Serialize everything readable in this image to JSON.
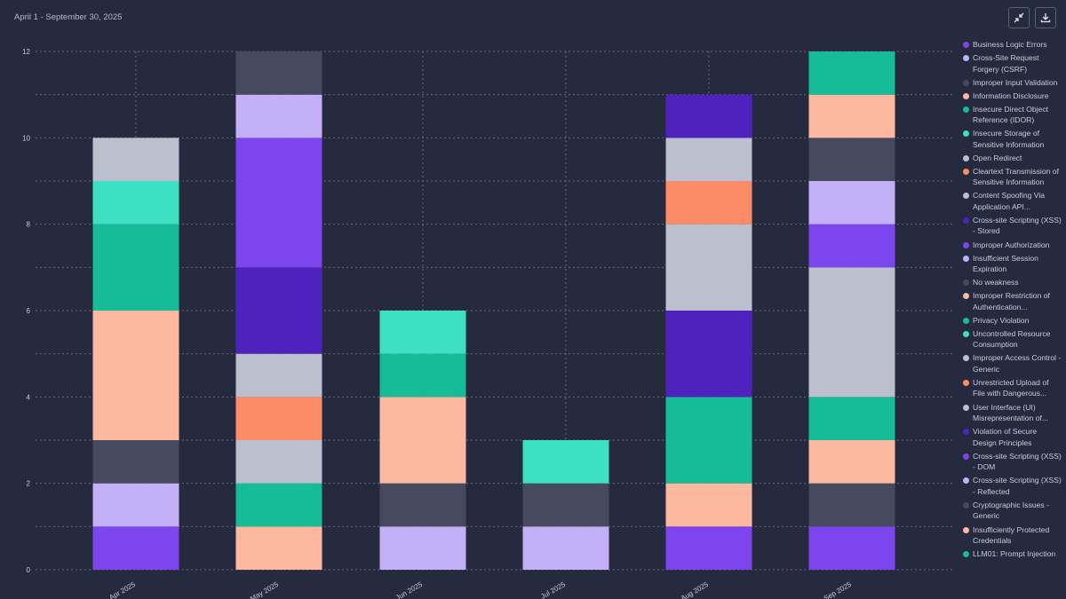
{
  "header": {
    "date_range": "April 1 - September 30, 2025",
    "collapse_icon": "collapse-icon",
    "download_icon": "download-icon"
  },
  "colors": {
    "background": "#262a3f",
    "grid": "#6b7089",
    "axis_text": "#c9ccd8"
  },
  "legend": [
    {
      "label": "Business Logic Errors",
      "color": "#7c45ee"
    },
    {
      "label": "Cross-Site Request Forgery (CSRF)",
      "color": "#c4b0f7"
    },
    {
      "label": "Improper Input Validation",
      "color": "#474a5e"
    },
    {
      "label": "Information Disclosure",
      "color": "#fdb9a0"
    },
    {
      "label": "Insecure Direct Object Reference (IDOR)",
      "color": "#16bb97"
    },
    {
      "label": "Insecure Storage of Sensitive Information",
      "color": "#3ee0c3"
    },
    {
      "label": "Open Redirect",
      "color": "#bcbfcd"
    },
    {
      "label": "Cleartext Transmission of Sensitive Information",
      "color": "#fc8b68"
    },
    {
      "label": "Content Spoofing Via Application API...",
      "color": "#bcbfcd"
    },
    {
      "label": "Cross-site Scripting (XSS) - Stored",
      "color": "#4f22bd"
    },
    {
      "label": "Improper Authorization",
      "color": "#7c45ee"
    },
    {
      "label": "Insufficient Session Expiration",
      "color": "#c4b0f7"
    },
    {
      "label": "No weakness",
      "color": "#474a5e"
    },
    {
      "label": "Improper Restriction of Authentication...",
      "color": "#fdb9a0"
    },
    {
      "label": "Privacy Violation",
      "color": "#16bb97"
    },
    {
      "label": "Uncontrolled Resource Consumption",
      "color": "#3ee0c3"
    },
    {
      "label": "Improper Access Control - Generic",
      "color": "#bcbfcd"
    },
    {
      "label": "Unrestricted Upload of File with Dangerous...",
      "color": "#fc8b68"
    },
    {
      "label": "User Interface (UI) Misrepresentation of...",
      "color": "#bcbfcd"
    },
    {
      "label": "Violation of Secure Design Principles",
      "color": "#4f22bd"
    },
    {
      "label": "Cross-site Scripting (XSS) - DOM",
      "color": "#7c45ee"
    },
    {
      "label": "Cross-site Scripting (XSS) - Reflected",
      "color": "#c4b0f7"
    },
    {
      "label": "Cryptographic Issues - Generic",
      "color": "#474a5e"
    },
    {
      "label": "Insufficiently Protected Credentials",
      "color": "#fdb9a0"
    },
    {
      "label": "LLM01: Prompt Injection",
      "color": "#16bb97"
    }
  ],
  "chart_data": {
    "type": "bar",
    "stacked": true,
    "categories": [
      "Apr 2025",
      "May 2025",
      "Jun 2025",
      "Jul 2025",
      "Aug 2025",
      "Sep 2025"
    ],
    "ylim": [
      0,
      12
    ],
    "yticks": [
      0,
      2,
      4,
      6,
      8,
      10,
      12
    ],
    "grid": true,
    "legend_position": "right",
    "stacks": [
      [
        {
          "color": "#7c45ee",
          "value": 1
        },
        {
          "color": "#c4b0f7",
          "value": 1
        },
        {
          "color": "#474a5e",
          "value": 1
        },
        {
          "color": "#fdb9a0",
          "value": 3
        },
        {
          "color": "#16bb97",
          "value": 2
        },
        {
          "color": "#3ee0c3",
          "value": 1
        },
        {
          "color": "#bcbfcd",
          "value": 1
        }
      ],
      [
        {
          "color": "#fdb9a0",
          "value": 1
        },
        {
          "color": "#16bb97",
          "value": 1
        },
        {
          "color": "#bcbfcd",
          "value": 1
        },
        {
          "color": "#fc8b68",
          "value": 1
        },
        {
          "color": "#bcbfcd",
          "value": 1
        },
        {
          "color": "#4f22bd",
          "value": 2
        },
        {
          "color": "#7c45ee",
          "value": 3
        },
        {
          "color": "#c4b0f7",
          "value": 1
        },
        {
          "color": "#474a5e",
          "value": 1
        }
      ],
      [
        {
          "color": "#c4b0f7",
          "value": 1
        },
        {
          "color": "#474a5e",
          "value": 1
        },
        {
          "color": "#fdb9a0",
          "value": 2
        },
        {
          "color": "#16bb97",
          "value": 1
        },
        {
          "color": "#3ee0c3",
          "value": 1
        }
      ],
      [
        {
          "color": "#c4b0f7",
          "value": 1
        },
        {
          "color": "#474a5e",
          "value": 1
        },
        {
          "color": "#3ee0c3",
          "value": 1
        }
      ],
      [
        {
          "color": "#7c45ee",
          "value": 1
        },
        {
          "color": "#fdb9a0",
          "value": 1
        },
        {
          "color": "#16bb97",
          "value": 2
        },
        {
          "color": "#4f22bd",
          "value": 2
        },
        {
          "color": "#bcbfcd",
          "value": 2
        },
        {
          "color": "#fc8b68",
          "value": 1
        },
        {
          "color": "#bcbfcd",
          "value": 1
        },
        {
          "color": "#4f22bd",
          "value": 1
        }
      ],
      [
        {
          "color": "#7c45ee",
          "value": 1
        },
        {
          "color": "#474a5e",
          "value": 1
        },
        {
          "color": "#fdb9a0",
          "value": 1
        },
        {
          "color": "#16bb97",
          "value": 1
        },
        {
          "color": "#bcbfcd",
          "value": 3
        },
        {
          "color": "#7c45ee",
          "value": 1
        },
        {
          "color": "#c4b0f7",
          "value": 1
        },
        {
          "color": "#474a5e",
          "value": 1
        },
        {
          "color": "#fdb9a0",
          "value": 1
        },
        {
          "color": "#16bb97",
          "value": 1
        }
      ]
    ]
  }
}
